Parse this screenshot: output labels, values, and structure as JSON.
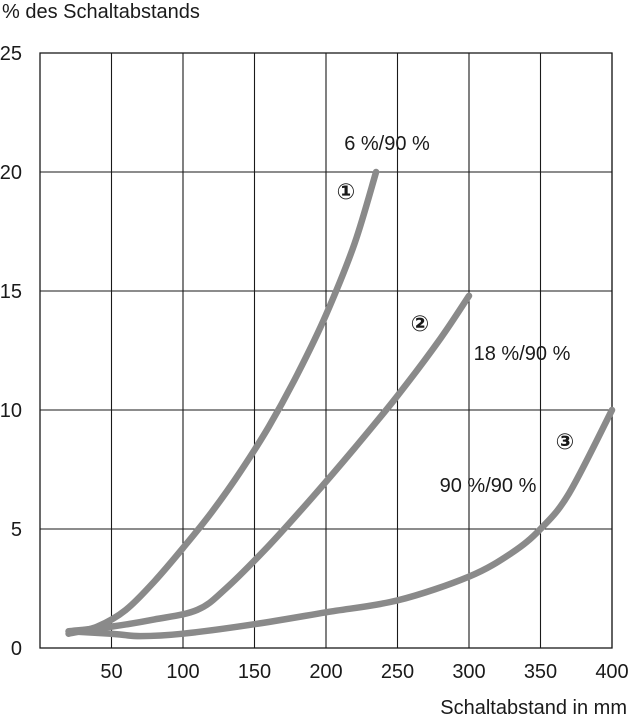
{
  "chart_data": {
    "type": "line",
    "ylabel": "% des Schaltabstands",
    "xlabel": "Schaltabstand in mm",
    "xlim": [
      0,
      400
    ],
    "ylim": [
      0,
      25
    ],
    "xticks": [
      50,
      100,
      150,
      200,
      250,
      300,
      350,
      400
    ],
    "yticks": [
      0,
      5,
      10,
      15,
      20,
      25
    ],
    "grid": true,
    "line_color": "#8a8a8a",
    "series": [
      {
        "name": "6 %/90 %",
        "marker": "①",
        "x": [
          20,
          40,
          60,
          80,
          100,
          120,
          140,
          160,
          180,
          200,
          220,
          235
        ],
        "y": [
          0.6,
          0.9,
          1.6,
          2.8,
          4.2,
          5.7,
          7.4,
          9.3,
          11.5,
          14.0,
          17.0,
          20.0
        ]
      },
      {
        "name": "18 %/90 %",
        "marker": "②",
        "x": [
          20,
          50,
          80,
          110,
          130,
          160,
          190,
          220,
          250,
          280,
          300
        ],
        "y": [
          0.7,
          0.9,
          1.2,
          1.6,
          2.5,
          4.3,
          6.3,
          8.4,
          10.6,
          13.0,
          14.8
        ]
      },
      {
        "name": "90 %/90 %",
        "marker": "③",
        "x": [
          20,
          50,
          70,
          100,
          150,
          200,
          250,
          300,
          330,
          350,
          370,
          400
        ],
        "y": [
          0.7,
          0.6,
          0.5,
          0.6,
          1.0,
          1.5,
          2.0,
          3.0,
          4.0,
          5.0,
          6.5,
          10.0
        ]
      }
    ]
  }
}
